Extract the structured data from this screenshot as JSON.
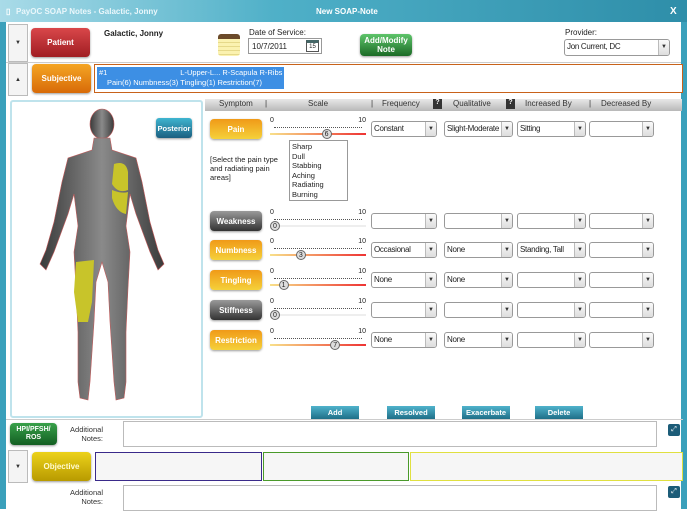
{
  "window": {
    "app_title": "PayOC SOAP Notes - Galactic, Jonny",
    "center_title": "New SOAP-Note",
    "close": "X"
  },
  "patient": {
    "button": "Patient",
    "name": "Galactic, Jonny",
    "date_label": "Date of Service:",
    "date_value": "10/7/2011",
    "calendar_day": "15",
    "add_modify": "Add/Modify Note",
    "provider_label": "Provider:",
    "provider_value": "Jon Current, DC"
  },
  "subjective": {
    "button": "Subjective",
    "entry_line1": "#1                                   L-Upper-L... R-Scapula R-Ribs",
    "entry_line2": "Pain(6) Numbness(3) Tingling(1) Restriction(7)"
  },
  "body_view": {
    "button": "Posterior",
    "highlight_color": "#c8c42a"
  },
  "table": {
    "headers": [
      "Symptom",
      "Scale",
      "Frequency",
      "Qualitative",
      "Increased By",
      "Decreased By"
    ],
    "help": "?",
    "scale_min": "0",
    "scale_max": "10",
    "rows": [
      {
        "symptom": "Pain",
        "active": true,
        "value": 6,
        "value_label": "6",
        "frequency": "Constant",
        "qualitative": "Slight-Moderate",
        "increased_by": "Sitting",
        "decreased_by": ""
      },
      {
        "symptom": "Weakness",
        "active": false,
        "value": 0,
        "value_label": "0",
        "frequency": "",
        "qualitative": "",
        "increased_by": "",
        "decreased_by": ""
      },
      {
        "symptom": "Numbness",
        "active": true,
        "value": 3,
        "value_label": "3",
        "frequency": "Occasional",
        "qualitative": "None",
        "increased_by": "Standing, Tall",
        "decreased_by": ""
      },
      {
        "symptom": "Tingling",
        "active": true,
        "value": 1,
        "value_label": "1",
        "frequency": "None",
        "qualitative": "None",
        "increased_by": "",
        "decreased_by": ""
      },
      {
        "symptom": "Stiffness",
        "active": false,
        "value": 0,
        "value_label": "0",
        "frequency": "",
        "qualitative": "",
        "increased_by": "",
        "decreased_by": ""
      },
      {
        "symptom": "Restriction",
        "active": true,
        "value": 7,
        "value_label": "7",
        "frequency": "None",
        "qualitative": "None",
        "increased_by": "",
        "decreased_by": ""
      }
    ],
    "pain_instruction": "[Select the pain type and radiating pain areas]",
    "pain_types": [
      "Sharp",
      "Dull",
      "Stabbing",
      "Aching",
      "Radiating",
      "Burning"
    ]
  },
  "actions": {
    "add": "Add",
    "resolved": "Resolved",
    "exacerbate": "Exacerbate",
    "delete": "Delete"
  },
  "hpi": {
    "button": "HPI/PFSH/ ROS",
    "notes_label": "Additional Notes:"
  },
  "objective": {
    "button": "Objective",
    "notes_label": "Additional Notes:"
  },
  "colors": {
    "patient": "#b3262a",
    "subjective": "#e8820f",
    "objective": "#c8a800",
    "hpi": "#1e7a2e",
    "accent": "#2e8ea9"
  }
}
